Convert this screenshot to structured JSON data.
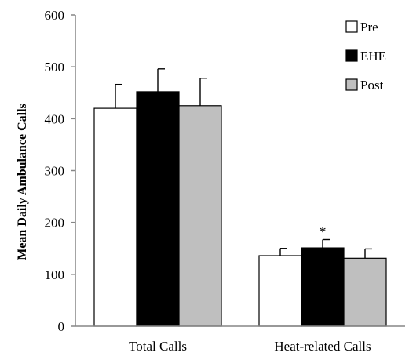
{
  "chart_data": {
    "type": "bar",
    "title": "",
    "xlabel": "",
    "ylabel": "Mean Daily Ambulance Calls",
    "ylim": [
      0,
      600
    ],
    "yticks": [
      0,
      100,
      200,
      300,
      400,
      500,
      600
    ],
    "categories": [
      "Total Calls",
      "Heat-related Calls"
    ],
    "series": [
      {
        "name": "Pre",
        "values": [
          420,
          136
        ],
        "errors": [
          46,
          14
        ],
        "color": "#ffffff"
      },
      {
        "name": "EHE",
        "values": [
          452,
          151
        ],
        "errors": [
          44,
          16
        ],
        "color": "#000000"
      },
      {
        "name": "Post",
        "values": [
          425,
          131
        ],
        "errors": [
          53,
          18
        ],
        "color": "#bfbfbf"
      }
    ],
    "annotations": [
      {
        "text": "*",
        "category": "Heat-related Calls",
        "series": "EHE"
      }
    ],
    "grid": false,
    "legend_position": "top-right"
  }
}
